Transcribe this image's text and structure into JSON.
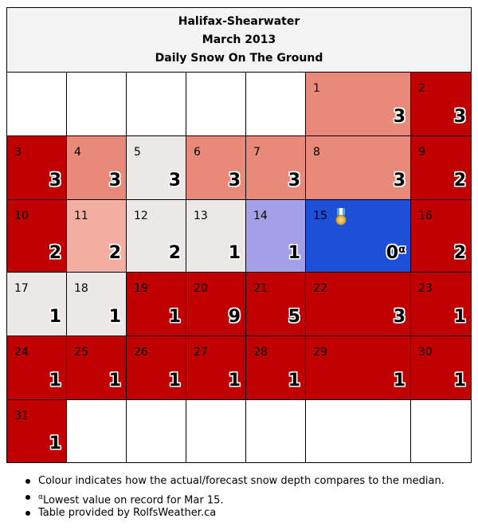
{
  "header": {
    "station": "Halifax-Shearwater",
    "period": "March 2013",
    "subtitle": "Daily Snow On The Ground"
  },
  "colors": {
    "much_above": "#c00000",
    "above": "#e9897a",
    "slightly_above": "#f1aea1",
    "near_median": "#ece8e8",
    "below": "#a4a0e8",
    "record_low": "#1e4fd8",
    "empty": "#ffffff"
  },
  "days": [
    {
      "day": "1",
      "value": "3",
      "color": "#e9897a"
    },
    {
      "day": "2",
      "value": "3",
      "color": "#c00000"
    },
    {
      "day": "3",
      "value": "3",
      "color": "#c00000"
    },
    {
      "day": "4",
      "value": "3",
      "color": "#e9897a"
    },
    {
      "day": "5",
      "value": "3",
      "color": "#ece8e8"
    },
    {
      "day": "6",
      "value": "3",
      "color": "#e9897a"
    },
    {
      "day": "7",
      "value": "3",
      "color": "#e9897a"
    },
    {
      "day": "8",
      "value": "3",
      "color": "#e9897a"
    },
    {
      "day": "9",
      "value": "2",
      "color": "#c00000"
    },
    {
      "day": "10",
      "value": "2",
      "color": "#c00000"
    },
    {
      "day": "11",
      "value": "2",
      "color": "#f1aea1"
    },
    {
      "day": "12",
      "value": "2",
      "color": "#ece8e8"
    },
    {
      "day": "13",
      "value": "1",
      "color": "#ece8e8"
    },
    {
      "day": "14",
      "value": "1",
      "color": "#a4a0e8"
    },
    {
      "day": "15",
      "value": "0",
      "marker": "α",
      "color": "#1e4fd8",
      "medal": "medal-icon"
    },
    {
      "day": "16",
      "value": "2",
      "color": "#c00000"
    },
    {
      "day": "17",
      "value": "1",
      "color": "#ece8e8"
    },
    {
      "day": "18",
      "value": "1",
      "color": "#ece8e8"
    },
    {
      "day": "19",
      "value": "1",
      "color": "#c00000"
    },
    {
      "day": "20",
      "value": "9",
      "color": "#c00000"
    },
    {
      "day": "21",
      "value": "5",
      "color": "#c00000"
    },
    {
      "day": "22",
      "value": "3",
      "color": "#c00000"
    },
    {
      "day": "23",
      "value": "1",
      "color": "#c00000"
    },
    {
      "day": "24",
      "value": "1",
      "color": "#c00000"
    },
    {
      "day": "25",
      "value": "1",
      "color": "#c00000"
    },
    {
      "day": "26",
      "value": "1",
      "color": "#c00000"
    },
    {
      "day": "27",
      "value": "1",
      "color": "#c00000"
    },
    {
      "day": "28",
      "value": "1",
      "color": "#c00000"
    },
    {
      "day": "29",
      "value": "1",
      "color": "#c00000"
    },
    {
      "day": "30",
      "value": "1",
      "color": "#c00000"
    },
    {
      "day": "31",
      "value": "1",
      "color": "#c00000"
    }
  ],
  "notes": {
    "colour": "Colour indicates how the actual/forecast snow depth compares to the median.",
    "record_marker": "α",
    "record": "Lowest value on record for Mar 15.",
    "credit": "Table provided by RolfsWeather.ca"
  }
}
